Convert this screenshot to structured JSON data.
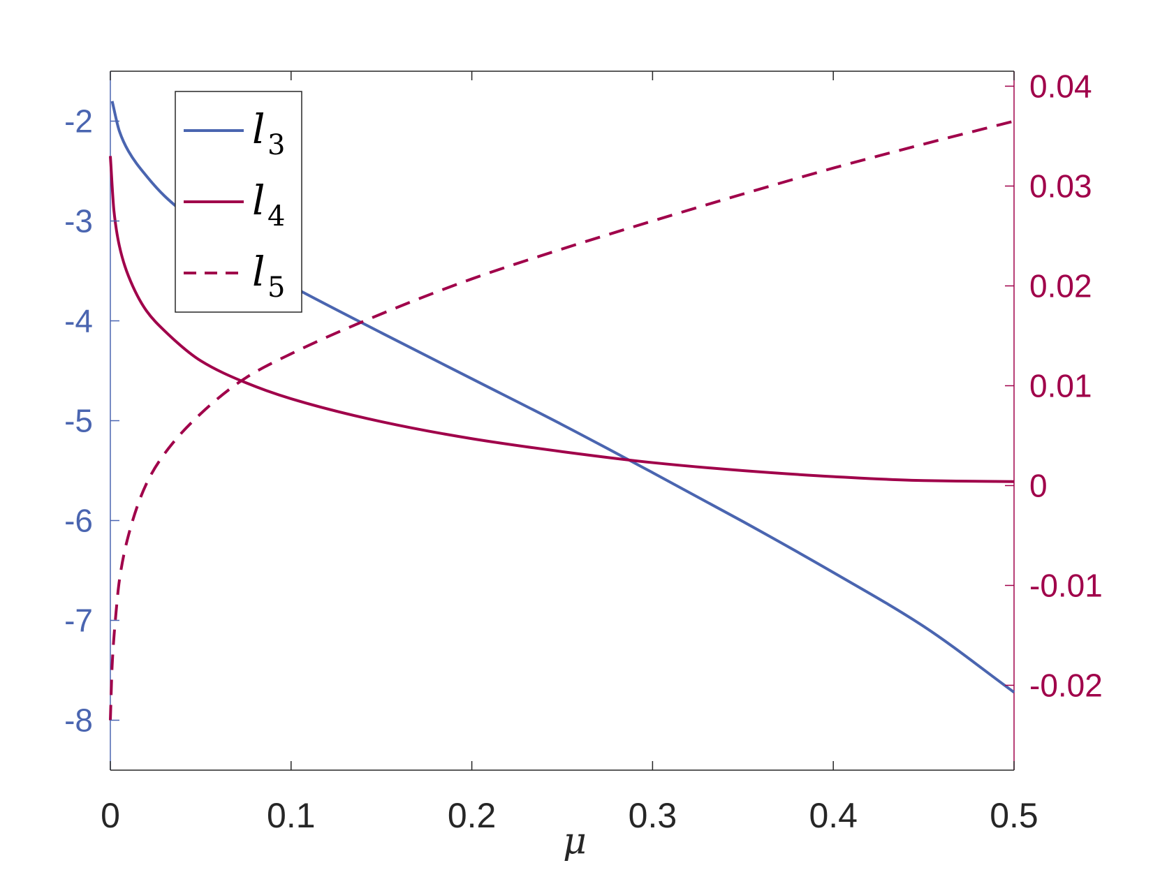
{
  "chart_data": {
    "type": "line",
    "xlabel": "μ",
    "xlim": [
      0,
      0.5
    ],
    "x_ticks": [
      "0",
      "0.1",
      "0.2",
      "0.3",
      "0.4",
      "0.5"
    ],
    "left_axis": {
      "ylim": [
        -8.5,
        -1.5
      ],
      "ticks": [
        "-2",
        "-3",
        "-4",
        "-5",
        "-6",
        "-7",
        "-8"
      ],
      "color": "#4a65b0"
    },
    "right_axis": {
      "ylim": [
        -0.0285,
        0.0415
      ],
      "ticks": [
        "0.04",
        "0.03",
        "0.02",
        "0.01",
        "0",
        "-0.01",
        "-0.02"
      ],
      "color": "#a0004a"
    },
    "grid": false,
    "legend_position": "top-left",
    "series": [
      {
        "name": "l3",
        "label_main": "l",
        "label_sub": "3",
        "axis": "left",
        "style": "solid",
        "color": "#4a65b0",
        "x": [
          0.001,
          0.005,
          0.01,
          0.02,
          0.03,
          0.05,
          0.075,
          0.1,
          0.15,
          0.2,
          0.25,
          0.3,
          0.35,
          0.4,
          0.45,
          0.5
        ],
        "y": [
          -1.8,
          -2.1,
          -2.3,
          -2.55,
          -2.75,
          -3.05,
          -3.4,
          -3.65,
          -4.12,
          -4.58,
          -5.04,
          -5.52,
          -6.01,
          -6.52,
          -7.06,
          -7.72
        ]
      },
      {
        "name": "l4",
        "label_main": "l",
        "label_sub": "4",
        "axis": "left",
        "style": "solid",
        "color": "#a0004a",
        "x": [
          0.0,
          0.002,
          0.005,
          0.01,
          0.02,
          0.03,
          0.05,
          0.075,
          0.1,
          0.15,
          0.2,
          0.25,
          0.3,
          0.35,
          0.4,
          0.45,
          0.5
        ],
        "y": [
          -2.35,
          -2.9,
          -3.25,
          -3.55,
          -3.9,
          -4.1,
          -4.4,
          -4.62,
          -4.78,
          -5.01,
          -5.18,
          -5.31,
          -5.42,
          -5.5,
          -5.56,
          -5.6,
          -5.61
        ]
      },
      {
        "name": "l5",
        "label_main": "l",
        "label_sub": "5",
        "axis": "right",
        "style": "dashed",
        "color": "#a0004a",
        "x": [
          0.0,
          0.001,
          0.003,
          0.005,
          0.01,
          0.02,
          0.03,
          0.05,
          0.075,
          0.1,
          0.15,
          0.2,
          0.25,
          0.3,
          0.35,
          0.4,
          0.45,
          0.5
        ],
        "y": [
          -0.0235,
          -0.018,
          -0.013,
          -0.0095,
          -0.005,
          0.0002,
          0.0032,
          0.0072,
          0.0108,
          0.0132,
          0.0172,
          0.0207,
          0.0237,
          0.0265,
          0.0292,
          0.0318,
          0.0342,
          0.0365
        ]
      }
    ]
  }
}
